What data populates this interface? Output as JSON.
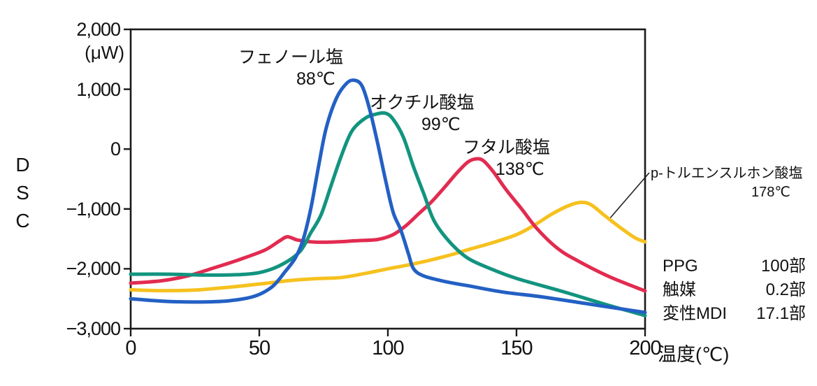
{
  "chart_data": {
    "type": "line",
    "xlabel": "温度(℃)",
    "ylabel": "DSC",
    "y_unit": "(μW)",
    "xlim": [
      0,
      200
    ],
    "ylim": [
      -3000,
      2000
    ],
    "grid": false,
    "legend_position": "outside-right",
    "xticks": [
      {
        "value": 0,
        "label": "0"
      },
      {
        "value": 50,
        "label": "50"
      },
      {
        "value": 100,
        "label": "100"
      },
      {
        "value": 150,
        "label": "150"
      },
      {
        "value": 200,
        "label": "200"
      }
    ],
    "yticks": [
      {
        "value": 2000,
        "label": "2,000"
      },
      {
        "value": 1000,
        "label": "1,000"
      },
      {
        "value": 0,
        "label": "0"
      },
      {
        "value": -1000,
        "label": "−1,000"
      },
      {
        "value": -2000,
        "label": "−2,000"
      },
      {
        "value": -3000,
        "label": "−3,000"
      }
    ],
    "series": [
      {
        "id": "tosylate",
        "name": "p-トルエンスルホン酸塩",
        "peak_label": "178℃",
        "color": "#f6c11f",
        "points": [
          [
            0,
            -2350
          ],
          [
            12,
            -2365
          ],
          [
            25,
            -2355
          ],
          [
            40,
            -2300
          ],
          [
            52,
            -2245
          ],
          [
            62,
            -2195
          ],
          [
            72,
            -2165
          ],
          [
            82,
            -2145
          ],
          [
            92,
            -2070
          ],
          [
            100,
            -2000
          ],
          [
            108,
            -1935
          ],
          [
            116,
            -1860
          ],
          [
            125,
            -1760
          ],
          [
            132,
            -1670
          ],
          [
            141,
            -1560
          ],
          [
            150,
            -1430
          ],
          [
            157,
            -1270
          ],
          [
            164,
            -1080
          ],
          [
            170,
            -950
          ],
          [
            175,
            -890
          ],
          [
            179,
            -930
          ],
          [
            184,
            -1100
          ],
          [
            190,
            -1300
          ],
          [
            196,
            -1480
          ],
          [
            200,
            -1550
          ]
        ]
      },
      {
        "id": "phthalate",
        "name": "フタル酸塩",
        "peak_label": "138℃",
        "color": "#e22b50",
        "points": [
          [
            0,
            -2240
          ],
          [
            12,
            -2200
          ],
          [
            22,
            -2120
          ],
          [
            32,
            -1990
          ],
          [
            42,
            -1850
          ],
          [
            52,
            -1690
          ],
          [
            58,
            -1530
          ],
          [
            61,
            -1465
          ],
          [
            65,
            -1520
          ],
          [
            72,
            -1555
          ],
          [
            80,
            -1550
          ],
          [
            88,
            -1530
          ],
          [
            96,
            -1510
          ],
          [
            102,
            -1430
          ],
          [
            107,
            -1280
          ],
          [
            112,
            -1080
          ],
          [
            117,
            -880
          ],
          [
            122,
            -640
          ],
          [
            127,
            -390
          ],
          [
            131,
            -220
          ],
          [
            134,
            -165
          ],
          [
            137,
            -190
          ],
          [
            141,
            -380
          ],
          [
            146,
            -680
          ],
          [
            152,
            -1000
          ],
          [
            158,
            -1330
          ],
          [
            166,
            -1660
          ],
          [
            174,
            -1870
          ],
          [
            186,
            -2130
          ],
          [
            200,
            -2370
          ]
        ]
      },
      {
        "id": "octylate",
        "name": "オクチル酸塩",
        "peak_label": "99℃",
        "color": "#12947f",
        "points": [
          [
            0,
            -2090
          ],
          [
            15,
            -2090
          ],
          [
            30,
            -2105
          ],
          [
            45,
            -2090
          ],
          [
            53,
            -2030
          ],
          [
            60,
            -1900
          ],
          [
            66,
            -1700
          ],
          [
            70,
            -1400
          ],
          [
            74,
            -1100
          ],
          [
            78,
            -600
          ],
          [
            82,
            -100
          ],
          [
            86,
            300
          ],
          [
            91,
            510
          ],
          [
            95,
            580
          ],
          [
            99,
            600
          ],
          [
            102,
            500
          ],
          [
            106,
            200
          ],
          [
            110,
            -300
          ],
          [
            114,
            -750
          ],
          [
            118,
            -1200
          ],
          [
            124,
            -1550
          ],
          [
            131,
            -1820
          ],
          [
            140,
            -2000
          ],
          [
            150,
            -2160
          ],
          [
            168,
            -2380
          ],
          [
            185,
            -2600
          ],
          [
            200,
            -2780
          ]
        ]
      },
      {
        "id": "phenolate",
        "name": "フェノール塩",
        "peak_label": "88℃",
        "color": "#2360c4",
        "points": [
          [
            0,
            -2500
          ],
          [
            12,
            -2540
          ],
          [
            25,
            -2555
          ],
          [
            38,
            -2535
          ],
          [
            48,
            -2460
          ],
          [
            55,
            -2300
          ],
          [
            60,
            -2050
          ],
          [
            64,
            -1820
          ],
          [
            67,
            -1520
          ],
          [
            70,
            -1000
          ],
          [
            73,
            -300
          ],
          [
            76,
            350
          ],
          [
            80,
            850
          ],
          [
            84,
            1100
          ],
          [
            87,
            1150
          ],
          [
            90,
            1050
          ],
          [
            93,
            650
          ],
          [
            96,
            100
          ],
          [
            99,
            -500
          ],
          [
            102,
            -1050
          ],
          [
            105,
            -1350
          ],
          [
            108,
            -1750
          ],
          [
            110,
            -2000
          ],
          [
            114,
            -2120
          ],
          [
            122,
            -2210
          ],
          [
            132,
            -2290
          ],
          [
            145,
            -2390
          ],
          [
            160,
            -2470
          ],
          [
            180,
            -2600
          ],
          [
            200,
            -2730
          ]
        ]
      }
    ]
  },
  "legend": {
    "rows": [
      {
        "name": "PPG",
        "value": "100部"
      },
      {
        "name": "触媒",
        "value": "0.2部"
      },
      {
        "name": "変性MDI",
        "value": "17.1部"
      }
    ]
  }
}
